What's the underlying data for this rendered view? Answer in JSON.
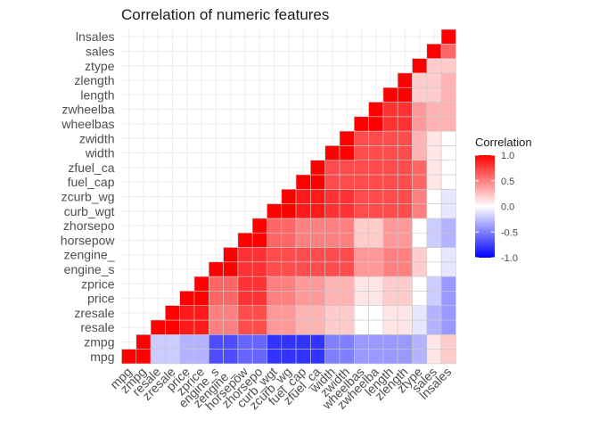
{
  "chart_data": {
    "type": "heatmap",
    "title": "Correlation of numeric features",
    "xlabel": "",
    "ylabel": "",
    "variables": [
      "mpg",
      "zmpg",
      "resale",
      "zresale",
      "price",
      "zprice",
      "engine_s",
      "zengine_",
      "horsepow",
      "zhorsepo",
      "curb_wgt",
      "zcurb_wg",
      "fuel_cap",
      "zfuel_ca",
      "width",
      "zwidth",
      "wheelbas",
      "zwheelba",
      "length",
      "zlength",
      "ztype",
      "sales",
      "lnsales"
    ],
    "matrix": [
      [
        1.0,
        1.0,
        -0.2,
        -0.2,
        -0.3,
        -0.3,
        -0.7,
        -0.7,
        -0.6,
        -0.6,
        -0.8,
        -0.8,
        -0.8,
        -0.8,
        -0.5,
        -0.5,
        -0.4,
        -0.4,
        -0.4,
        -0.4,
        -0.3,
        0.1,
        0.2
      ],
      [
        1.0,
        1.0,
        -0.2,
        -0.2,
        -0.3,
        -0.3,
        -0.7,
        -0.7,
        -0.6,
        -0.6,
        -0.8,
        -0.8,
        -0.8,
        -0.8,
        -0.5,
        -0.5,
        -0.4,
        -0.4,
        -0.4,
        -0.4,
        -0.3,
        0.1,
        0.2
      ],
      [
        null,
        null,
        1.0,
        1.0,
        0.9,
        0.9,
        0.5,
        0.5,
        0.7,
        0.7,
        0.4,
        0.4,
        0.3,
        0.3,
        0.2,
        0.2,
        0.0,
        0.0,
        0.1,
        0.1,
        -0.1,
        -0.3,
        -0.4
      ],
      [
        null,
        null,
        null,
        1.0,
        0.9,
        0.9,
        0.5,
        0.5,
        0.7,
        0.7,
        0.4,
        0.4,
        0.3,
        0.3,
        0.2,
        0.2,
        0.0,
        0.0,
        0.1,
        0.1,
        -0.1,
        -0.3,
        -0.4
      ],
      [
        null,
        null,
        null,
        null,
        1.0,
        1.0,
        0.6,
        0.6,
        0.8,
        0.8,
        0.5,
        0.5,
        0.4,
        0.4,
        0.3,
        0.3,
        0.1,
        0.1,
        0.2,
        0.2,
        0.0,
        -0.2,
        -0.4
      ],
      [
        null,
        null,
        null,
        null,
        null,
        1.0,
        0.6,
        0.6,
        0.8,
        0.8,
        0.5,
        0.5,
        0.4,
        0.4,
        0.3,
        0.3,
        0.1,
        0.1,
        0.2,
        0.2,
        0.0,
        -0.2,
        -0.4
      ],
      [
        null,
        null,
        null,
        null,
        null,
        null,
        1.0,
        1.0,
        0.8,
        0.8,
        0.7,
        0.7,
        0.7,
        0.7,
        0.7,
        0.7,
        0.4,
        0.4,
        0.5,
        0.5,
        0.2,
        0.0,
        -0.1
      ],
      [
        null,
        null,
        null,
        null,
        null,
        null,
        null,
        1.0,
        0.8,
        0.8,
        0.7,
        0.7,
        0.7,
        0.7,
        0.7,
        0.7,
        0.4,
        0.4,
        0.5,
        0.5,
        0.2,
        0.0,
        -0.1
      ],
      [
        null,
        null,
        null,
        null,
        null,
        null,
        null,
        null,
        1.0,
        1.0,
        0.6,
        0.6,
        0.5,
        0.5,
        0.5,
        0.5,
        0.2,
        0.2,
        0.4,
        0.4,
        0.0,
        -0.2,
        -0.3
      ],
      [
        null,
        null,
        null,
        null,
        null,
        null,
        null,
        null,
        null,
        1.0,
        0.6,
        0.6,
        0.5,
        0.5,
        0.5,
        0.5,
        0.2,
        0.2,
        0.4,
        0.4,
        0.0,
        -0.2,
        -0.3
      ],
      [
        null,
        null,
        null,
        null,
        null,
        null,
        null,
        null,
        null,
        null,
        1.0,
        1.0,
        0.9,
        0.9,
        0.8,
        0.8,
        0.7,
        0.7,
        0.7,
        0.7,
        0.5,
        0.0,
        -0.1
      ],
      [
        null,
        null,
        null,
        null,
        null,
        null,
        null,
        null,
        null,
        null,
        null,
        1.0,
        0.9,
        0.9,
        0.8,
        0.8,
        0.7,
        0.7,
        0.7,
        0.7,
        0.5,
        0.0,
        -0.1
      ],
      [
        null,
        null,
        null,
        null,
        null,
        null,
        null,
        null,
        null,
        null,
        null,
        null,
        1.0,
        1.0,
        0.7,
        0.7,
        0.7,
        0.7,
        0.7,
        0.7,
        0.6,
        0.1,
        0.0
      ],
      [
        null,
        null,
        null,
        null,
        null,
        null,
        null,
        null,
        null,
        null,
        null,
        null,
        null,
        1.0,
        0.7,
        0.7,
        0.7,
        0.7,
        0.7,
        0.7,
        0.6,
        0.1,
        0.0
      ],
      [
        null,
        null,
        null,
        null,
        null,
        null,
        null,
        null,
        null,
        null,
        null,
        null,
        null,
        null,
        1.0,
        1.0,
        0.7,
        0.7,
        0.7,
        0.7,
        0.3,
        0.1,
        0.0
      ],
      [
        null,
        null,
        null,
        null,
        null,
        null,
        null,
        null,
        null,
        null,
        null,
        null,
        null,
        null,
        null,
        1.0,
        0.7,
        0.7,
        0.7,
        0.7,
        0.3,
        0.1,
        0.0
      ],
      [
        null,
        null,
        null,
        null,
        null,
        null,
        null,
        null,
        null,
        null,
        null,
        null,
        null,
        null,
        null,
        null,
        1.0,
        1.0,
        0.8,
        0.8,
        0.4,
        0.3,
        0.3
      ],
      [
        null,
        null,
        null,
        null,
        null,
        null,
        null,
        null,
        null,
        null,
        null,
        null,
        null,
        null,
        null,
        null,
        null,
        1.0,
        0.8,
        0.8,
        0.4,
        0.3,
        0.3
      ],
      [
        null,
        null,
        null,
        null,
        null,
        null,
        null,
        null,
        null,
        null,
        null,
        null,
        null,
        null,
        null,
        null,
        null,
        null,
        1.0,
        1.0,
        0.2,
        0.2,
        0.3
      ],
      [
        null,
        null,
        null,
        null,
        null,
        null,
        null,
        null,
        null,
        null,
        null,
        null,
        null,
        null,
        null,
        null,
        null,
        null,
        null,
        1.0,
        0.2,
        0.2,
        0.3
      ],
      [
        null,
        null,
        null,
        null,
        null,
        null,
        null,
        null,
        null,
        null,
        null,
        null,
        null,
        null,
        null,
        null,
        null,
        null,
        null,
        null,
        1.0,
        0.2,
        0.2
      ],
      [
        null,
        null,
        null,
        null,
        null,
        null,
        null,
        null,
        null,
        null,
        null,
        null,
        null,
        null,
        null,
        null,
        null,
        null,
        null,
        null,
        null,
        1.0,
        0.6
      ],
      [
        null,
        null,
        null,
        null,
        null,
        null,
        null,
        null,
        null,
        null,
        null,
        null,
        null,
        null,
        null,
        null,
        null,
        null,
        null,
        null,
        null,
        null,
        1.0
      ]
    ],
    "color_scale": {
      "title": "Correlation",
      "min": -1.0,
      "max": 1.0,
      "low_color": "#0000ff",
      "mid_color": "#ffffff",
      "high_color": "#ff0000",
      "ticks": [
        "1.0",
        "0.5",
        "0.0",
        "-0.5",
        "-1.0"
      ],
      "tick_values": [
        1.0,
        0.5,
        0.0,
        -0.5,
        -1.0
      ]
    },
    "legend_position": "right",
    "grid": true
  }
}
